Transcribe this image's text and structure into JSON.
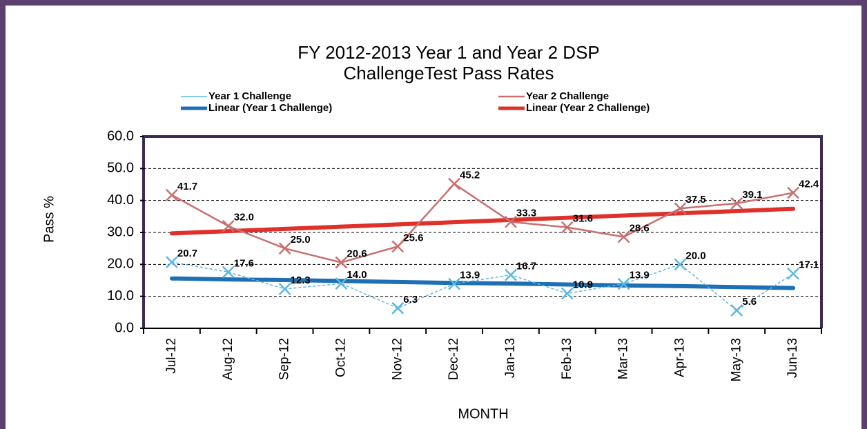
{
  "chart_data": {
    "type": "line",
    "title": "FY 2012-2013  Year 1 and Year 2 DSP",
    "subtitle": "ChallengeTest Pass Rates",
    "x_label": "MONTH",
    "y_label": "Pass %",
    "categories": [
      "Jul-12",
      "Aug-12",
      "Sep-12",
      "Oct-12",
      "Nov-12",
      "Dec-12",
      "Jan-13",
      "Feb-13",
      "Mar-13",
      "Apr-13",
      "May-13",
      "Jun-13"
    ],
    "series": [
      {
        "name": "Year 1 Challenge",
        "color": "#5bb8e0",
        "marker": "x",
        "dashed": true,
        "width": 1.5,
        "values": [
          20.7,
          17.6,
          12.3,
          14.0,
          6.3,
          13.9,
          16.7,
          10.9,
          13.9,
          20.0,
          5.6,
          17.1
        ],
        "value_labels": [
          "20.7",
          "17.6",
          "12.3",
          "14.0",
          "6.3",
          "13.9",
          "16.7",
          "10.9",
          "13.9",
          "20.0",
          "5.6",
          "17.1"
        ]
      },
      {
        "name": "Year 2 Challenge",
        "color": "#c87070",
        "marker": "x",
        "dashed": false,
        "width": 2.5,
        "values": [
          41.7,
          32.0,
          25.0,
          20.6,
          25.6,
          45.2,
          33.3,
          31.6,
          28.6,
          37.5,
          39.1,
          42.4
        ],
        "value_labels": [
          "41.7",
          "32.0",
          "25.0",
          "20.6",
          "25.6",
          "45.2",
          "33.3",
          "31.6",
          "28.6",
          "37.5",
          "39.1",
          "42.4"
        ]
      },
      {
        "name": "Linear (Year 1 Challenge)",
        "color": "#1f6fb5",
        "marker": "none",
        "dashed": false,
        "width": 6,
        "values": [
          15.6,
          15.3,
          15.1,
          14.8,
          14.5,
          14.2,
          14.0,
          13.7,
          13.4,
          13.2,
          12.9,
          12.6
        ]
      },
      {
        "name": "Linear (Year 2 Challenge)",
        "color": "#e0302a",
        "marker": "none",
        "dashed": false,
        "width": 6,
        "values": [
          29.7,
          30.4,
          31.1,
          31.8,
          32.5,
          33.2,
          33.9,
          34.6,
          35.3,
          36.0,
          36.7,
          37.4
        ]
      }
    ],
    "ylim": [
      0,
      60
    ],
    "yticks": [
      {
        "value": 0,
        "label": "0.0"
      },
      {
        "value": 10,
        "label": "10.0"
      },
      {
        "value": 20,
        "label": "20.0"
      },
      {
        "value": 30,
        "label": "30.0"
      },
      {
        "value": 40,
        "label": "40.0"
      },
      {
        "value": 50,
        "label": "50.0"
      },
      {
        "value": 60,
        "label": "60.0"
      }
    ],
    "grid": true
  }
}
